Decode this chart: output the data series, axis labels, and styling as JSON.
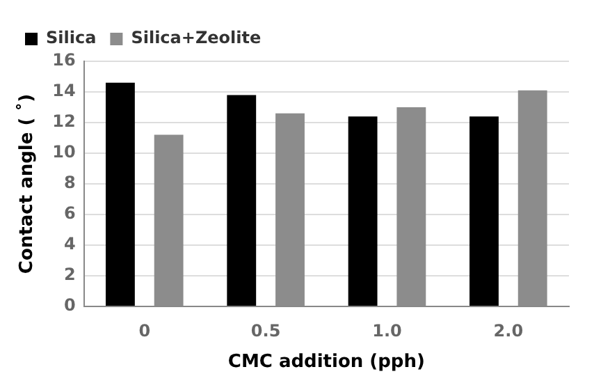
{
  "chart_data": {
    "type": "bar",
    "xlabel": "CMC addition (pph)",
    "ylabel": "Contact angle ( ˚)",
    "categories": [
      "0",
      "0.5",
      "1.0",
      "2.0"
    ],
    "series": [
      {
        "name": "Silica",
        "color": "#000000",
        "values": [
          14.6,
          13.8,
          12.4,
          12.4
        ]
      },
      {
        "name": "Silica+Zeolite",
        "color": "#8c8c8c",
        "values": [
          11.2,
          12.6,
          13.0,
          14.1
        ]
      }
    ],
    "ylim": [
      0,
      16
    ],
    "yticks": [
      0,
      2,
      4,
      6,
      8,
      10,
      12,
      14,
      16
    ],
    "grid": "y",
    "legend": "top left"
  }
}
